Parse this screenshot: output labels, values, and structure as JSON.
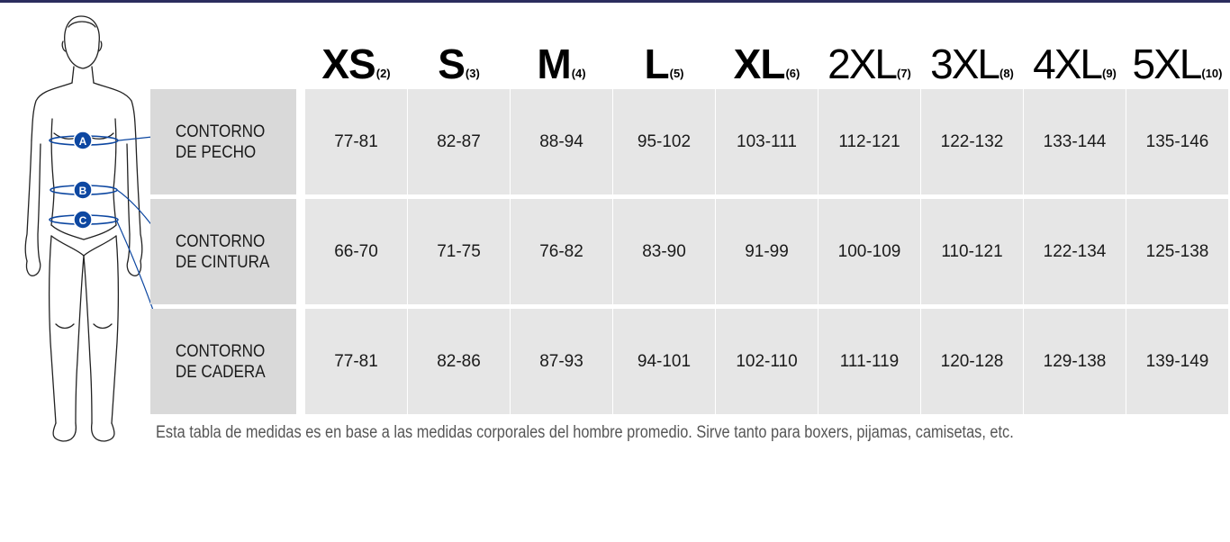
{
  "sizes": [
    {
      "label": "XS",
      "number": "(2)"
    },
    {
      "label": "S",
      "number": "(3)"
    },
    {
      "label": "M",
      "number": "(4)"
    },
    {
      "label": "L",
      "number": "(5)"
    },
    {
      "label": "XL",
      "number": "(6)"
    },
    {
      "label": "2XL",
      "number": "(7)"
    },
    {
      "label": "3XL",
      "number": "(8)"
    },
    {
      "label": "4XL",
      "number": "(9)"
    },
    {
      "label": "5XL",
      "number": "(10)"
    }
  ],
  "rows": [
    {
      "label_line1": "CONTORNO",
      "label_line2": "DE PECHO",
      "marker": "A",
      "values": [
        "77-81",
        "82-87",
        "88-94",
        "95-102",
        "103-111",
        "112-121",
        "122-132",
        "133-144",
        "135-146"
      ]
    },
    {
      "label_line1": "CONTORNO",
      "label_line2": "DE CINTURA",
      "marker": "B",
      "values": [
        "66-70",
        "71-75",
        "76-82",
        "83-90",
        "91-99",
        "100-109",
        "110-121",
        "122-134",
        "125-138"
      ]
    },
    {
      "label_line1": "CONTORNO",
      "label_line2": "DE CADERA",
      "marker": "C",
      "values": [
        "77-81",
        "82-86",
        "87-93",
        "94-101",
        "102-110",
        "111-119",
        "120-128",
        "129-138",
        "139-149"
      ]
    }
  ],
  "footnote": "Esta tabla de medidas es en base a las medidas corporales del hombre promedio. Sirve tanto para boxers, pijamas, camisetas, etc.",
  "colors": {
    "marker": "#0d47a1",
    "label_bg": "#d9d9d9",
    "cell_bg": "#e6e6e6",
    "top_bar": "#2b2d5e"
  }
}
